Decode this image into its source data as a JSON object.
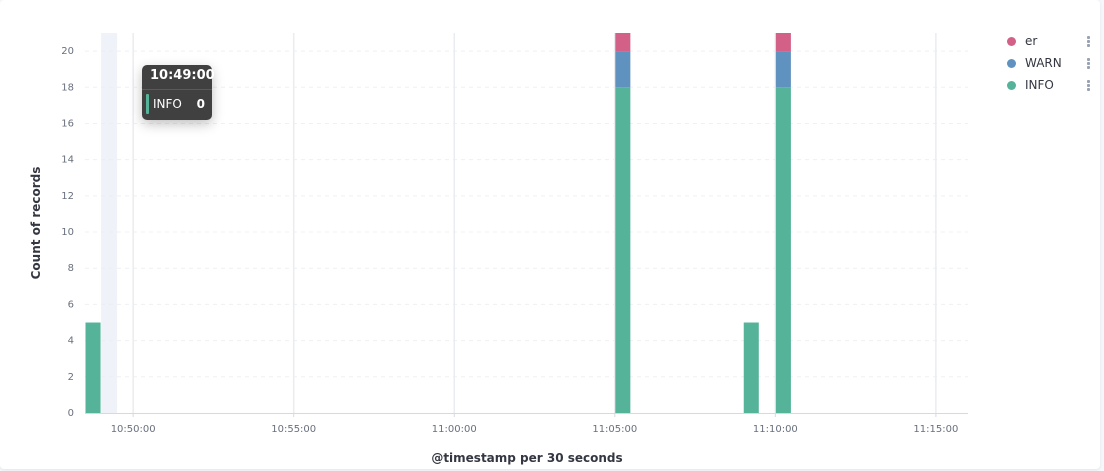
{
  "chart_data": {
    "type": "bar",
    "stacked": true,
    "xlabel": "@timestamp per 30 seconds",
    "ylabel": "Count of records",
    "x_ticks": [
      "10:50:00",
      "10:55:00",
      "11:00:00",
      "11:05:00",
      "11:10:00",
      "11:15:00"
    ],
    "y_ticks": [
      0,
      2,
      4,
      6,
      8,
      10,
      12,
      14,
      16,
      18,
      20
    ],
    "ylim": [
      0,
      21
    ],
    "xlim": [
      "10:48:30",
      "11:16:00"
    ],
    "grid": true,
    "legend_position": "top-right",
    "series": [
      {
        "name": "er",
        "color": "#d36086",
        "points": [
          {
            "x": "10:48:30",
            "value": 0
          },
          {
            "x": "11:05:00",
            "value": 1
          },
          {
            "x": "11:09:00",
            "value": 0
          },
          {
            "x": "11:10:00",
            "value": 1
          }
        ]
      },
      {
        "name": "WARN",
        "color": "#6092c0",
        "points": [
          {
            "x": "10:48:30",
            "value": 0
          },
          {
            "x": "11:05:00",
            "value": 2
          },
          {
            "x": "11:09:00",
            "value": 0
          },
          {
            "x": "11:10:00",
            "value": 2
          }
        ]
      },
      {
        "name": "INFO",
        "color": "#54b399",
        "points": [
          {
            "x": "10:48:30",
            "value": 5
          },
          {
            "x": "11:05:00",
            "value": 18
          },
          {
            "x": "11:09:00",
            "value": 5
          },
          {
            "x": "11:10:00",
            "value": 18
          }
        ]
      }
    ],
    "highlight_bucket": "10:49:00"
  },
  "tooltip": {
    "title": "10:49:00",
    "series": "INFO",
    "value": "0",
    "color": "#54b399"
  },
  "legend": {
    "items": [
      {
        "label": "er",
        "color": "#d36086"
      },
      {
        "label": "WARN",
        "color": "#6092c0"
      },
      {
        "label": "INFO",
        "color": "#54b399"
      }
    ]
  }
}
